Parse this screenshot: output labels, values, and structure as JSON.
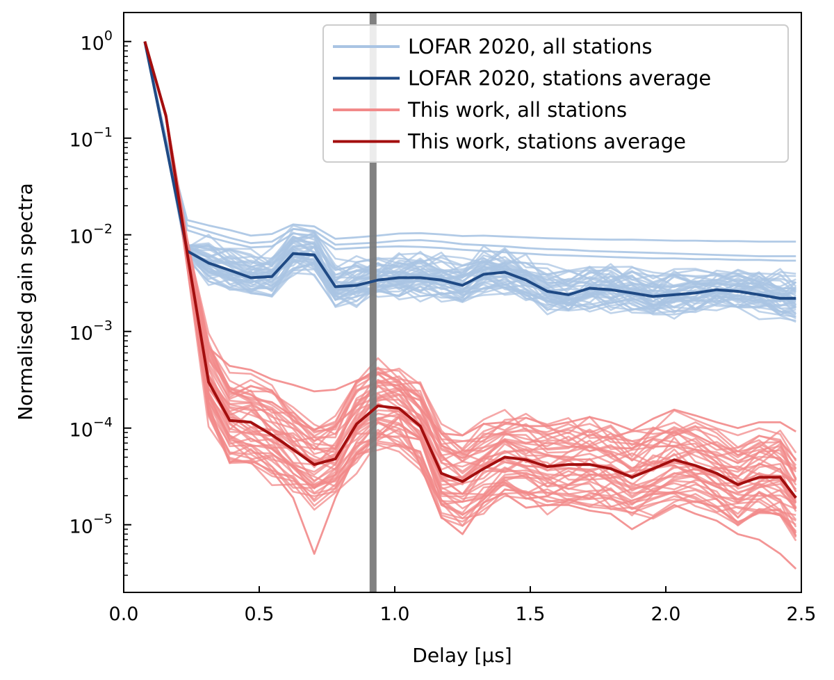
{
  "chart_data": {
    "type": "line",
    "xlabel": "Delay [μs]",
    "ylabel": "Normalised gain spectra",
    "xlim": [
      0.0,
      2.5
    ],
    "ylim_log10": [
      -5.7,
      0.3
    ],
    "y_scale": "log",
    "x_ticks": [
      "0.0",
      "0.5",
      "1.0",
      "1.5",
      "2.0",
      "2.5"
    ],
    "y_ticks": [
      {
        "base": "10",
        "exp": "0"
      },
      {
        "base": "10",
        "exp": "−1"
      },
      {
        "base": "10",
        "exp": "−2"
      },
      {
        "base": "10",
        "exp": "−3"
      },
      {
        "base": "10",
        "exp": "−4"
      },
      {
        "base": "10",
        "exp": "−5"
      }
    ],
    "grid": false,
    "legend_position": "top-right",
    "vertical_line_x": 0.92,
    "x": [
      0.078,
      0.156,
      0.234,
      0.313,
      0.391,
      0.469,
      0.547,
      0.625,
      0.703,
      0.781,
      0.859,
      0.938,
      1.016,
      1.094,
      1.172,
      1.25,
      1.328,
      1.406,
      1.484,
      1.563,
      1.641,
      1.719,
      1.797,
      1.875,
      1.953,
      2.031,
      2.109,
      2.188,
      2.266,
      2.344,
      2.422,
      2.48
    ],
    "series": [
      {
        "name": "LOFAR 2020, all stations",
        "role": "ensemble",
        "color": "#a9c4e3",
        "center_y": [
          1.0,
          0.085,
          0.0068,
          0.0051,
          0.0043,
          0.0036,
          0.0037,
          0.0064,
          0.0062,
          0.0029,
          0.003,
          0.0034,
          0.0036,
          0.0036,
          0.0034,
          0.003,
          0.0039,
          0.0041,
          0.0034,
          0.0026,
          0.0024,
          0.0028,
          0.0027,
          0.0025,
          0.0023,
          0.0024,
          0.0025,
          0.0027,
          0.0026,
          0.0024,
          0.0022,
          0.0022
        ],
        "spread_decades_low": 0.16,
        "spread_decades_high": 0.2,
        "upper_outliers_y": [
          [
            1.0,
            0.1,
            0.0142,
            0.0125,
            0.0112,
            0.0098,
            0.0102,
            0.0128,
            0.0122,
            0.0091,
            0.0094,
            0.0098,
            0.0103,
            0.0104,
            0.0101,
            0.0097,
            0.0098,
            0.0096,
            0.0094,
            0.0092,
            0.0091,
            0.009,
            0.0089,
            0.0089,
            0.0088,
            0.0087,
            0.0087,
            0.0086,
            0.0086,
            0.0085,
            0.0085,
            0.0085
          ],
          [
            1.0,
            0.1,
            0.0125,
            0.0108,
            0.0093,
            0.0082,
            0.0085,
            0.0115,
            0.011,
            0.0079,
            0.0081,
            0.0083,
            0.0087,
            0.0088,
            0.0085,
            0.008,
            0.0078,
            0.0076,
            0.0073,
            0.0071,
            0.007,
            0.0068,
            0.0067,
            0.0066,
            0.0065,
            0.0064,
            0.0063,
            0.0062,
            0.0061,
            0.006,
            0.006,
            0.006
          ],
          [
            1.0,
            0.1,
            0.0112,
            0.0095,
            0.0083,
            0.0074,
            0.0076,
            0.0103,
            0.0098,
            0.0071,
            0.0073,
            0.0075,
            0.0076,
            0.0075,
            0.0073,
            0.007,
            0.0068,
            0.0066,
            0.0064,
            0.0062,
            0.0061,
            0.006,
            0.0059,
            0.0058,
            0.0057,
            0.0057,
            0.0056,
            0.0056,
            0.0055,
            0.0055,
            0.0054,
            0.0054
          ]
        ]
      },
      {
        "name": "LOFAR 2020, stations average",
        "role": "average",
        "color": "#1f4a85",
        "y": [
          1.0,
          0.085,
          0.0068,
          0.0051,
          0.0043,
          0.0036,
          0.0037,
          0.0064,
          0.0062,
          0.0029,
          0.003,
          0.0034,
          0.0036,
          0.0036,
          0.0034,
          0.003,
          0.0039,
          0.0041,
          0.0034,
          0.0026,
          0.0024,
          0.0028,
          0.0027,
          0.0025,
          0.0023,
          0.0024,
          0.0025,
          0.0027,
          0.0026,
          0.0024,
          0.0022,
          0.0022
        ]
      },
      {
        "name": "This work, all stations",
        "role": "ensemble",
        "color": "#f28a8a",
        "center_y": [
          1.0,
          0.17,
          0.0065,
          0.0003,
          0.00012,
          0.000115,
          8.5e-05,
          6e-05,
          4.2e-05,
          4.8e-05,
          0.00011,
          0.00017,
          0.00016,
          0.000105,
          3.4e-05,
          2.8e-05,
          3.8e-05,
          5e-05,
          4.7e-05,
          4e-05,
          4.2e-05,
          4.2e-05,
          3.8e-05,
          3.1e-05,
          3.8e-05,
          4.7e-05,
          4.1e-05,
          3.4e-05,
          2.6e-05,
          3.1e-05,
          3.1e-05,
          1.9e-05
        ],
        "spread_decades_low": 0.42,
        "spread_decades_high": 0.42,
        "upper_outliers_y": [
          [
            1.0,
            0.17,
            0.0075,
            0.00068,
            0.00044,
            0.0004,
            0.00032,
            0.00028,
            0.00024,
            0.00025,
            0.00031,
            0.00038,
            0.00031,
            0.00016,
            8.8e-05,
            8.4e-05,
            0.00011,
            0.000115,
            0.000105,
            0.000105,
            0.000115,
            0.00013,
            0.000115,
            9.5e-05,
            0.000125,
            0.000155,
            0.000135,
            0.000115,
            0.0001,
            0.000115,
            0.000115,
            9.2e-05
          ]
        ],
        "lower_outliers_y": [
          [
            1.0,
            0.17,
            0.0065,
            0.00017,
            4.5e-05,
            4.6e-05,
            3.6e-05,
            1.9e-05,
            5e-06,
            1.9e-05,
            5.5e-05,
            8e-05,
            0.00013,
            4.1e-05,
            1.2e-05,
            8e-06,
            1.7e-05,
            2.1e-05,
            1.5e-05,
            1.6e-05,
            1.6e-05,
            1.4e-05,
            1.3e-05,
            9e-06,
            1.2e-05,
            1.6e-05,
            1.3e-05,
            1.1e-05,
            8e-06,
            7e-06,
            5e-06,
            3.5e-06
          ]
        ]
      },
      {
        "name": "This work, stations average",
        "role": "average",
        "color": "#a30e0e",
        "y": [
          1.0,
          0.17,
          0.0065,
          0.0003,
          0.00012,
          0.000115,
          8.5e-05,
          6e-05,
          4.2e-05,
          4.8e-05,
          0.00011,
          0.00017,
          0.00016,
          0.000105,
          3.4e-05,
          2.8e-05,
          3.8e-05,
          5e-05,
          4.7e-05,
          4e-05,
          4.2e-05,
          4.2e-05,
          3.8e-05,
          3.1e-05,
          3.8e-05,
          4.7e-05,
          4.1e-05,
          3.4e-05,
          2.6e-05,
          3.1e-05,
          3.1e-05,
          1.9e-05
        ]
      }
    ],
    "legend": [
      {
        "label": "LOFAR 2020, all stations",
        "color": "#a9c4e3"
      },
      {
        "label": "LOFAR 2020, stations average",
        "color": "#1f4a85"
      },
      {
        "label": "This work, all stations",
        "color": "#f28a8a"
      },
      {
        "label": "This work, stations average",
        "color": "#a30e0e"
      }
    ]
  }
}
